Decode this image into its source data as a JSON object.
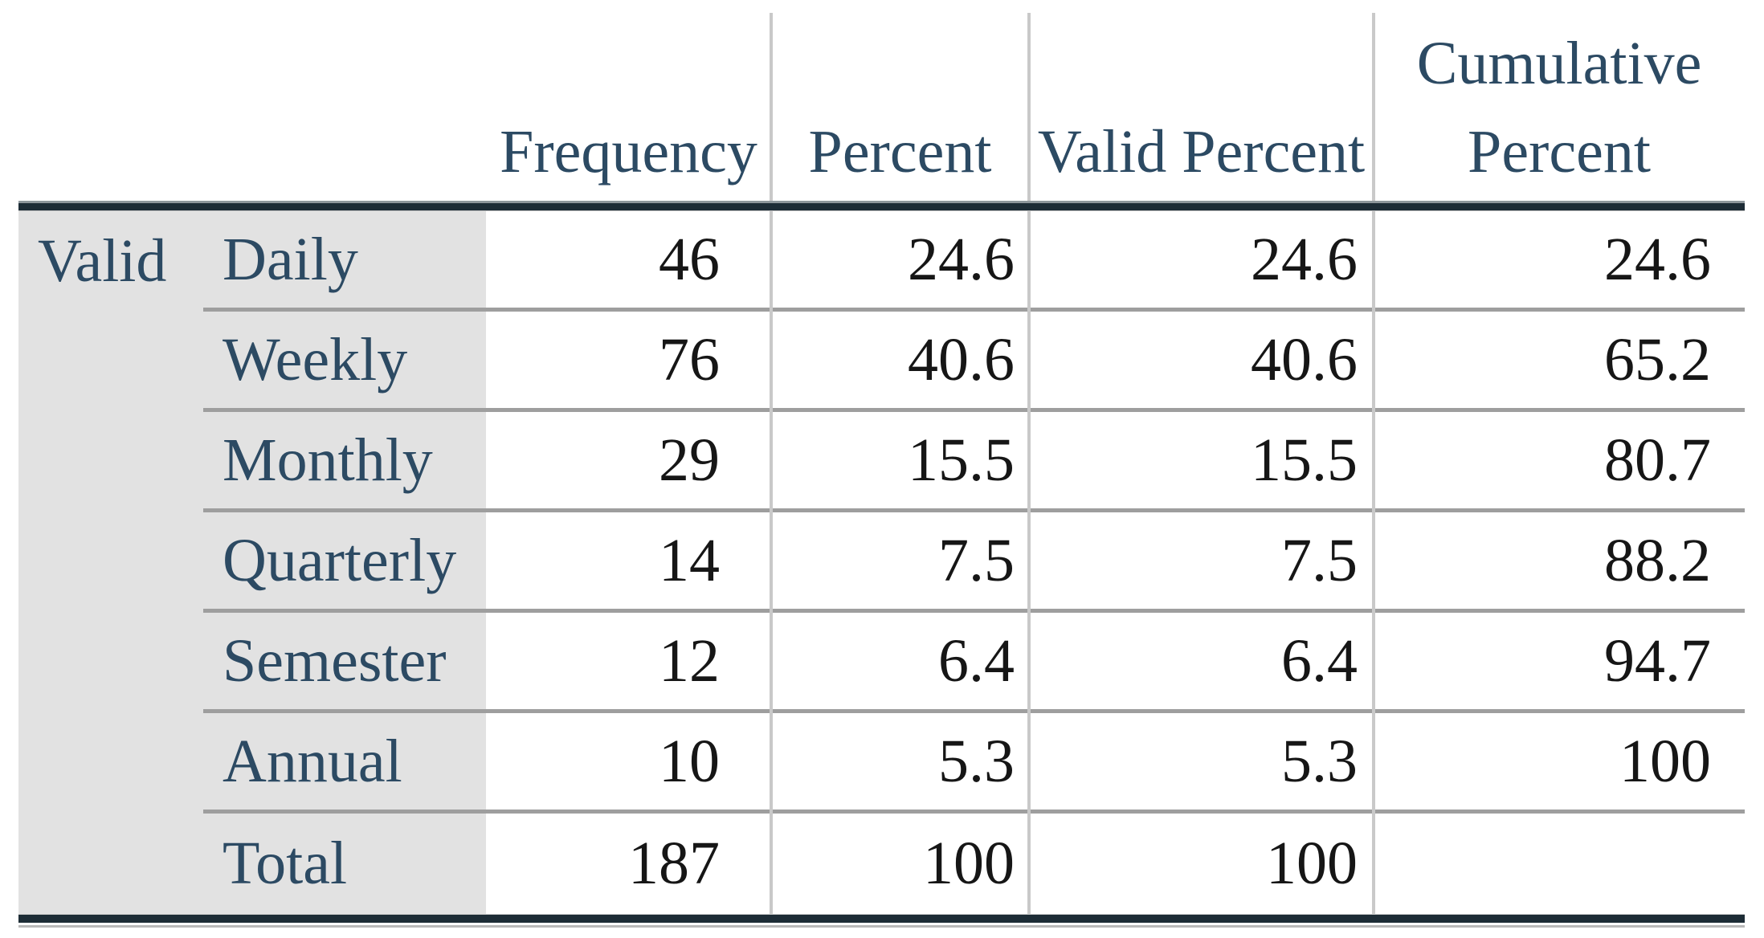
{
  "chart_data": {
    "type": "table",
    "title": "",
    "stub_label": "Valid",
    "headers": [
      "Frequency",
      "Percent",
      "Valid Percent",
      "Cumulative Percent"
    ],
    "rows": [
      {
        "label": "Daily",
        "frequency": 46,
        "percent": 24.6,
        "valid_percent": 24.6,
        "cumulative_percent": 24.6
      },
      {
        "label": "Weekly",
        "frequency": 76,
        "percent": 40.6,
        "valid_percent": 40.6,
        "cumulative_percent": 65.2
      },
      {
        "label": "Monthly",
        "frequency": 29,
        "percent": 15.5,
        "valid_percent": 15.5,
        "cumulative_percent": 80.7
      },
      {
        "label": "Quarterly",
        "frequency": 14,
        "percent": 7.5,
        "valid_percent": 7.5,
        "cumulative_percent": 88.2
      },
      {
        "label": "Semester",
        "frequency": 12,
        "percent": 6.4,
        "valid_percent": 6.4,
        "cumulative_percent": 94.7
      },
      {
        "label": "Annual",
        "frequency": 10,
        "percent": 5.3,
        "valid_percent": 5.3,
        "cumulative_percent": 100
      },
      {
        "label": "Total",
        "frequency": 187,
        "percent": 100,
        "valid_percent": 100,
        "cumulative_percent": null
      }
    ]
  },
  "colors": {
    "header_text": "#2c4a63",
    "number_text": "#161616",
    "stub_background": "#e2e2e2",
    "column_divider": "#c9c9c9",
    "row_separator": "#9e9e9e",
    "thick_rule": "#1d2c36"
  }
}
